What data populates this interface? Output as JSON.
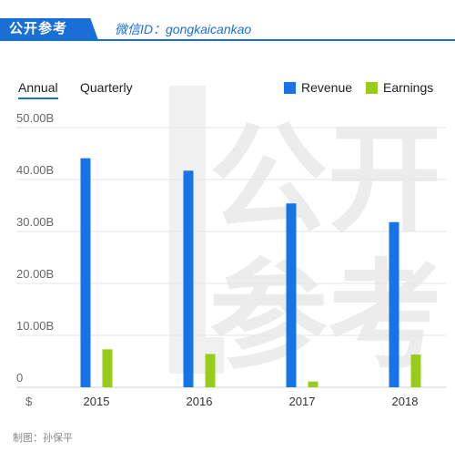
{
  "header": {
    "brand": "公开参考",
    "wechat": "微信ID：gongkaicankao"
  },
  "tabs": [
    {
      "label": "Annual",
      "active": true
    },
    {
      "label": "Quarterly",
      "active": false
    }
  ],
  "watermark_text": "公开参考",
  "footer": "制图：孙保平",
  "colors": {
    "accent": "#1a6fd6",
    "revenue": "#1773e6",
    "earnings": "#99cc1a"
  },
  "chart_data": {
    "type": "bar",
    "categories": [
      "2015",
      "2016",
      "2017",
      "2018"
    ],
    "series": [
      {
        "name": "Revenue",
        "values": [
          44.1,
          41.7,
          35.4,
          31.8
        ],
        "color": "#1773e6"
      },
      {
        "name": "Earnings",
        "values": [
          7.3,
          6.4,
          1.1,
          6.3
        ],
        "color": "#99cc1a"
      }
    ],
    "yticks": [
      "0",
      "10.00B",
      "20.00B",
      "30.00B",
      "40.00B",
      "50.00B"
    ],
    "ylim": [
      0,
      50
    ],
    "unit_label": "$",
    "legend_position": "top-right",
    "grid": true
  }
}
